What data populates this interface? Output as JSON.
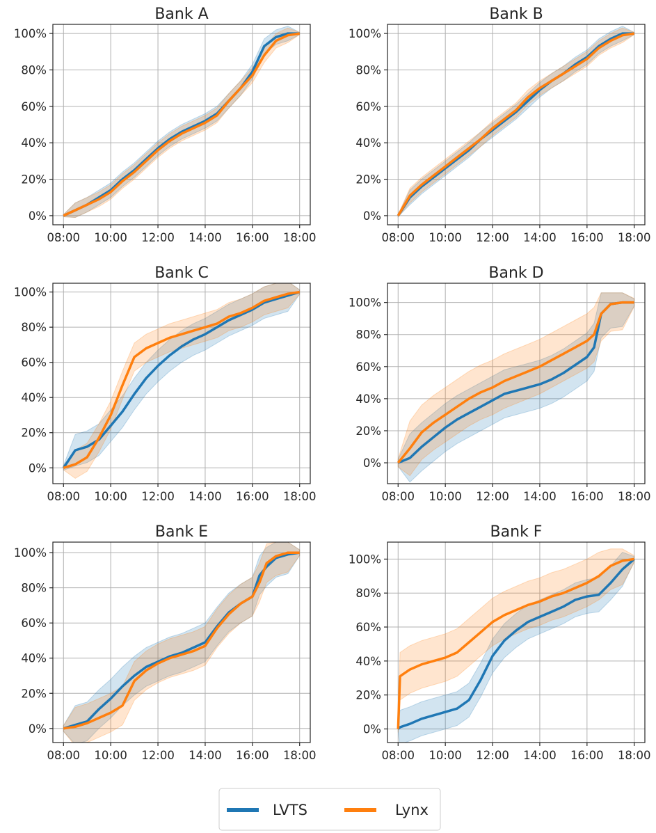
{
  "colors": {
    "lvts": "#1f77b4",
    "lynx": "#ff7f0e",
    "grid": "#b0b0b0"
  },
  "legend": {
    "entries": [
      {
        "name": "LVTS",
        "color": "#1f77b4"
      },
      {
        "name": "Lynx",
        "color": "#ff7f0e"
      }
    ],
    "placement": "bottom-center"
  },
  "chart_data": [
    {
      "type": "line",
      "title": "Bank A",
      "x_ticks": [
        "08:00",
        "10:00",
        "12:00",
        "14:00",
        "16:00",
        "18:00"
      ],
      "y_ticks": [
        "0%",
        "20%",
        "40%",
        "60%",
        "80%",
        "100%"
      ],
      "xlim": [
        7.55,
        18.45
      ],
      "ylim": [
        -5,
        105
      ],
      "grid": true,
      "x": [
        8,
        8.5,
        9,
        9.5,
        10,
        10.5,
        11,
        11.5,
        12,
        12.5,
        13,
        13.5,
        14,
        14.5,
        15,
        15.5,
        16,
        16.5,
        17,
        17.5,
        18
      ],
      "series": [
        {
          "name": "LVTS",
          "values": [
            0,
            3,
            6,
            10,
            14,
            20,
            25,
            31,
            37,
            42,
            46,
            49,
            52,
            56,
            63,
            70,
            79,
            93,
            98,
            100,
            100
          ],
          "band": 4
        },
        {
          "name": "Lynx",
          "values": [
            0,
            3,
            6,
            9,
            13,
            19,
            24,
            30,
            36,
            41,
            45,
            48,
            51,
            55,
            63,
            70,
            77,
            88,
            96,
            99,
            100
          ],
          "band": 4
        }
      ]
    },
    {
      "type": "line",
      "title": "Bank B",
      "x_ticks": [
        "08:00",
        "10:00",
        "12:00",
        "14:00",
        "16:00",
        "18:00"
      ],
      "y_ticks": [
        "0%",
        "20%",
        "40%",
        "60%",
        "80%",
        "100%"
      ],
      "xlim": [
        7.55,
        18.45
      ],
      "ylim": [
        -5,
        105
      ],
      "grid": true,
      "x": [
        8,
        8.5,
        9,
        9.5,
        10,
        10.5,
        11,
        11.5,
        12,
        12.5,
        13,
        13.5,
        14,
        14.5,
        15,
        15.5,
        16,
        16.5,
        17,
        17.5,
        18
      ],
      "series": [
        {
          "name": "LVTS",
          "values": [
            0,
            10,
            16,
            21,
            26,
            31,
            36,
            42,
            47,
            52,
            57,
            63,
            69,
            74,
            78,
            83,
            87,
            93,
            97,
            100,
            100
          ],
          "band": 4
        },
        {
          "name": "Lynx",
          "values": [
            0,
            11,
            17,
            22,
            27,
            32,
            37,
            42,
            48,
            53,
            58,
            65,
            70,
            74,
            78,
            82,
            86,
            92,
            96,
            99,
            100
          ],
          "band": 4
        }
      ]
    },
    {
      "type": "line",
      "title": "Bank C",
      "x_ticks": [
        "08:00",
        "10:00",
        "12:00",
        "14:00",
        "16:00",
        "18:00"
      ],
      "y_ticks": [
        "0%",
        "20%",
        "40%",
        "60%",
        "80%",
        "100%"
      ],
      "xlim": [
        7.55,
        18.45
      ],
      "ylim": [
        -9,
        105
      ],
      "grid": true,
      "x": [
        8,
        8.5,
        9,
        9.5,
        10,
        10.5,
        11,
        11.5,
        12,
        12.5,
        13,
        13.5,
        14,
        14.5,
        15,
        15.5,
        16,
        16.5,
        17,
        17.5,
        18
      ],
      "series": [
        {
          "name": "LVTS",
          "values": [
            0,
            10,
            12,
            16,
            24,
            32,
            42,
            51,
            58,
            64,
            69,
            73,
            76,
            80,
            84,
            87,
            90,
            94,
            96,
            98,
            100
          ],
          "band": 9
        },
        {
          "name": "Lynx",
          "values": [
            0,
            2,
            6,
            17,
            30,
            47,
            63,
            68,
            71,
            74,
            76,
            78,
            80,
            82,
            86,
            88,
            91,
            95,
            97,
            99,
            100
          ],
          "band": 8
        }
      ]
    },
    {
      "type": "line",
      "title": "Bank D",
      "x_ticks": [
        "08:00",
        "10:00",
        "12:00",
        "14:00",
        "16:00",
        "18:00"
      ],
      "y_ticks": [
        "0%",
        "20%",
        "40%",
        "60%",
        "80%",
        "100%"
      ],
      "xlim": [
        7.55,
        18.45
      ],
      "ylim": [
        -13,
        112
      ],
      "grid": true,
      "x": [
        8,
        8.5,
        9,
        9.5,
        10,
        10.5,
        11,
        11.5,
        12,
        12.5,
        13,
        13.5,
        14,
        14.5,
        15,
        15.5,
        16,
        16.3,
        16.6,
        17,
        17.5,
        18
      ],
      "series": [
        {
          "name": "LVTS",
          "values": [
            0,
            3,
            10,
            16,
            22,
            27,
            31,
            35,
            39,
            43,
            45,
            47,
            49,
            52,
            56,
            61,
            66,
            72,
            93,
            99,
            100,
            100
          ],
          "band": 15
        },
        {
          "name": "Lynx",
          "values": [
            0,
            9,
            19,
            25,
            30,
            35,
            40,
            44,
            47,
            51,
            54,
            57,
            60,
            64,
            68,
            72,
            76,
            80,
            93,
            99,
            100,
            100
          ],
          "band": 17
        }
      ]
    },
    {
      "type": "line",
      "title": "Bank E",
      "x_ticks": [
        "08:00",
        "10:00",
        "12:00",
        "14:00",
        "16:00",
        "18:00"
      ],
      "y_ticks": [
        "0%",
        "20%",
        "40%",
        "60%",
        "80%",
        "100%"
      ],
      "xlim": [
        7.55,
        18.45
      ],
      "ylim": [
        -8,
        106
      ],
      "grid": true,
      "x": [
        8,
        8.5,
        9,
        9.5,
        10,
        10.5,
        11,
        11.5,
        12,
        12.5,
        13,
        13.5,
        14,
        14.5,
        15,
        15.5,
        16,
        16.3,
        16.6,
        17,
        17.5,
        18
      ],
      "series": [
        {
          "name": "LVTS",
          "values": [
            0,
            2,
            4,
            11,
            17,
            24,
            30,
            35,
            38,
            41,
            43,
            46,
            49,
            58,
            66,
            71,
            75,
            87,
            92,
            97,
            99,
            100
          ],
          "band": 11
        },
        {
          "name": "Lynx",
          "values": [
            0,
            1,
            3,
            6,
            9,
            13,
            27,
            33,
            37,
            40,
            42,
            44,
            47,
            57,
            65,
            71,
            75,
            83,
            94,
            98,
            100,
            100
          ],
          "band": 11
        }
      ]
    },
    {
      "type": "line",
      "title": "Bank F",
      "x_ticks": [
        "08:00",
        "10:00",
        "12:00",
        "14:00",
        "16:00",
        "18:00"
      ],
      "y_ticks": [
        "0%",
        "20%",
        "40%",
        "60%",
        "80%",
        "100%"
      ],
      "xlim": [
        7.55,
        18.45
      ],
      "ylim": [
        -8,
        110
      ],
      "grid": true,
      "x": [
        8,
        8.08,
        8.5,
        9,
        9.5,
        10,
        10.5,
        11,
        11.5,
        12,
        12.5,
        13,
        13.5,
        14,
        14.5,
        15,
        15.5,
        16,
        16.5,
        17,
        17.5,
        18
      ],
      "series": [
        {
          "name": "LVTS",
          "values": [
            0,
            1,
            3,
            6,
            8,
            10,
            12,
            17,
            29,
            43,
            52,
            58,
            63,
            66,
            69,
            72,
            76,
            78,
            79,
            86,
            94,
            100
          ],
          "band": 10
        },
        {
          "name": "Lynx",
          "values": [
            0,
            31,
            35,
            38,
            40,
            42,
            45,
            51,
            57,
            63,
            67,
            70,
            73,
            75,
            78,
            80,
            83,
            86,
            90,
            96,
            99,
            100
          ],
          "band": 14
        }
      ]
    }
  ]
}
